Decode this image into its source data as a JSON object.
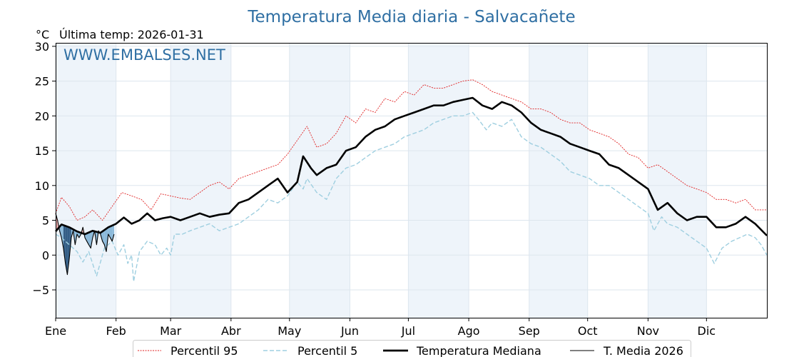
{
  "header": {
    "title": "Temperatura Media diaria - Salvacañete",
    "unit": "°C",
    "last_temp": "Última temp: 2026-01-31",
    "watermark": "WWW.EMBALSES.NET"
  },
  "legend": {
    "p95": "Percentil 95",
    "p5": "Percentil 5",
    "median": "Temperatura Mediana",
    "current": "T. Media 2026"
  },
  "colors": {
    "p95": "#e02020",
    "p5": "#9fcfe0",
    "median": "#000000",
    "current": "#000000",
    "above_fill": "#e8a0a0",
    "below_fill_light": "#7fb2d6",
    "below_fill_dark": "#1f4e79",
    "band": "#eef4fa",
    "grid": "#dde6ee",
    "title": "#2f6fa3"
  },
  "chart_data": {
    "type": "line",
    "xlim": [
      1,
      366
    ],
    "ylim": [
      -9,
      30.5
    ],
    "y_ticks": [
      -5,
      0,
      5,
      10,
      15,
      20,
      25,
      30
    ],
    "y_tick_labels": [
      "−5",
      "0",
      "5",
      "10",
      "15",
      "20",
      "25",
      "30"
    ],
    "month_labels": [
      "Ene",
      "Feb",
      "Mar",
      "Abr",
      "May",
      "Jun",
      "Jul",
      "Ago",
      "Sep",
      "Oct",
      "Nov",
      "Dic"
    ],
    "month_start_days": [
      1,
      32,
      60,
      91,
      121,
      152,
      182,
      213,
      244,
      274,
      305,
      335
    ],
    "series": [
      {
        "name": "Percentil 95",
        "style": "dotted-thin",
        "points": [
          [
            1,
            6
          ],
          [
            4,
            8.3
          ],
          [
            8,
            7
          ],
          [
            12,
            5
          ],
          [
            16,
            5.5
          ],
          [
            20,
            6.5
          ],
          [
            25,
            5
          ],
          [
            30,
            7
          ],
          [
            35,
            9
          ],
          [
            40,
            8.5
          ],
          [
            45,
            8
          ],
          [
            50,
            6.5
          ],
          [
            55,
            8.8
          ],
          [
            60,
            8.5
          ],
          [
            65,
            8.2
          ],
          [
            70,
            8
          ],
          [
            75,
            9
          ],
          [
            80,
            10
          ],
          [
            85,
            10.5
          ],
          [
            90,
            9.5
          ],
          [
            95,
            11
          ],
          [
            100,
            11.5
          ],
          [
            105,
            12
          ],
          [
            110,
            12.5
          ],
          [
            115,
            13
          ],
          [
            120,
            14.5
          ],
          [
            125,
            16.5
          ],
          [
            130,
            18.5
          ],
          [
            135,
            15.5
          ],
          [
            140,
            16
          ],
          [
            145,
            17.5
          ],
          [
            150,
            20
          ],
          [
            155,
            19
          ],
          [
            160,
            21
          ],
          [
            165,
            20.5
          ],
          [
            170,
            22.5
          ],
          [
            175,
            22
          ],
          [
            180,
            23.5
          ],
          [
            185,
            23
          ],
          [
            190,
            24.5
          ],
          [
            195,
            24
          ],
          [
            200,
            24
          ],
          [
            205,
            24.5
          ],
          [
            210,
            25
          ],
          [
            215,
            25.2
          ],
          [
            220,
            24.5
          ],
          [
            225,
            23.5
          ],
          [
            230,
            23
          ],
          [
            235,
            22.5
          ],
          [
            240,
            22
          ],
          [
            245,
            21
          ],
          [
            250,
            21
          ],
          [
            255,
            20.5
          ],
          [
            260,
            19.5
          ],
          [
            265,
            19
          ],
          [
            270,
            19
          ],
          [
            275,
            18
          ],
          [
            280,
            17.5
          ],
          [
            285,
            17
          ],
          [
            290,
            16
          ],
          [
            295,
            14.5
          ],
          [
            300,
            14
          ],
          [
            305,
            12.5
          ],
          [
            310,
            13
          ],
          [
            315,
            12
          ],
          [
            320,
            11
          ],
          [
            325,
            10
          ],
          [
            330,
            9.5
          ],
          [
            335,
            9
          ],
          [
            340,
            8
          ],
          [
            345,
            8
          ],
          [
            350,
            7.5
          ],
          [
            355,
            8
          ],
          [
            360,
            6.5
          ],
          [
            366,
            6.5
          ]
        ]
      },
      {
        "name": "Percentil 5",
        "style": "dashed",
        "points": [
          [
            1,
            3
          ],
          [
            4,
            2.5
          ],
          [
            8,
            1.5
          ],
          [
            12,
            0.5
          ],
          [
            15,
            -1
          ],
          [
            18,
            0.5
          ],
          [
            22,
            -3
          ],
          [
            26,
            1
          ],
          [
            30,
            2
          ],
          [
            33,
            0
          ],
          [
            36,
            1.5
          ],
          [
            38,
            -1.2
          ],
          [
            40,
            0
          ],
          [
            41,
            -3.8
          ],
          [
            44,
            0.5
          ],
          [
            48,
            2
          ],
          [
            52,
            1.5
          ],
          [
            55,
            0
          ],
          [
            58,
            1
          ],
          [
            60,
            0
          ],
          [
            62,
            3
          ],
          [
            66,
            3
          ],
          [
            70,
            3.5
          ],
          [
            75,
            4
          ],
          [
            80,
            4.5
          ],
          [
            85,
            3.5
          ],
          [
            90,
            4
          ],
          [
            95,
            4.5
          ],
          [
            100,
            5.5
          ],
          [
            105,
            6.5
          ],
          [
            110,
            8
          ],
          [
            115,
            7.5
          ],
          [
            120,
            8.5
          ],
          [
            125,
            10.5
          ],
          [
            128,
            9.5
          ],
          [
            130,
            11
          ],
          [
            135,
            9
          ],
          [
            140,
            8
          ],
          [
            145,
            11
          ],
          [
            150,
            12.5
          ],
          [
            155,
            13
          ],
          [
            160,
            14
          ],
          [
            165,
            15
          ],
          [
            170,
            15.5
          ],
          [
            175,
            16
          ],
          [
            180,
            17
          ],
          [
            185,
            17.5
          ],
          [
            190,
            18
          ],
          [
            195,
            19
          ],
          [
            200,
            19.5
          ],
          [
            205,
            20
          ],
          [
            210,
            20
          ],
          [
            215,
            20.5
          ],
          [
            218,
            19.5
          ],
          [
            222,
            18
          ],
          [
            225,
            19
          ],
          [
            230,
            18.5
          ],
          [
            235,
            19.5
          ],
          [
            240,
            17
          ],
          [
            245,
            16
          ],
          [
            250,
            15.5
          ],
          [
            255,
            14.5
          ],
          [
            260,
            13.5
          ],
          [
            265,
            12
          ],
          [
            270,
            11.5
          ],
          [
            275,
            11
          ],
          [
            280,
            10
          ],
          [
            285,
            10
          ],
          [
            290,
            9
          ],
          [
            295,
            8
          ],
          [
            300,
            7
          ],
          [
            305,
            6
          ],
          [
            308,
            3.5
          ],
          [
            312,
            5.5
          ],
          [
            315,
            4.5
          ],
          [
            320,
            4
          ],
          [
            325,
            3
          ],
          [
            330,
            2
          ],
          [
            335,
            1
          ],
          [
            339,
            -1.2
          ],
          [
            343,
            1
          ],
          [
            348,
            2
          ],
          [
            352,
            2.5
          ],
          [
            356,
            3
          ],
          [
            360,
            2.5
          ],
          [
            363,
            1.5
          ],
          [
            366,
            0
          ]
        ]
      },
      {
        "name": "Temperatura Mediana",
        "style": "solid-thick",
        "points": [
          [
            1,
            3.4
          ],
          [
            4,
            4.4
          ],
          [
            8,
            4
          ],
          [
            12,
            3.4
          ],
          [
            16,
            3
          ],
          [
            20,
            3.5
          ],
          [
            24,
            3.2
          ],
          [
            28,
            4
          ],
          [
            32,
            4.5
          ],
          [
            36,
            5.4
          ],
          [
            40,
            4.5
          ],
          [
            44,
            5
          ],
          [
            48,
            6
          ],
          [
            52,
            5
          ],
          [
            56,
            5.3
          ],
          [
            60,
            5.5
          ],
          [
            65,
            5
          ],
          [
            70,
            5.5
          ],
          [
            75,
            6
          ],
          [
            80,
            5.5
          ],
          [
            85,
            5.8
          ],
          [
            90,
            6
          ],
          [
            95,
            7.5
          ],
          [
            100,
            8
          ],
          [
            105,
            9
          ],
          [
            110,
            10
          ],
          [
            115,
            11
          ],
          [
            120,
            9
          ],
          [
            125,
            10.5
          ],
          [
            128,
            14.2
          ],
          [
            132,
            12.5
          ],
          [
            135,
            11.5
          ],
          [
            140,
            12.5
          ],
          [
            145,
            13
          ],
          [
            150,
            15
          ],
          [
            155,
            15.5
          ],
          [
            160,
            17
          ],
          [
            165,
            18
          ],
          [
            170,
            18.5
          ],
          [
            175,
            19.5
          ],
          [
            180,
            20
          ],
          [
            185,
            20.5
          ],
          [
            190,
            21
          ],
          [
            195,
            21.5
          ],
          [
            200,
            21.5
          ],
          [
            205,
            22
          ],
          [
            210,
            22.3
          ],
          [
            215,
            22.6
          ],
          [
            220,
            21.5
          ],
          [
            225,
            21
          ],
          [
            230,
            22
          ],
          [
            235,
            21.5
          ],
          [
            240,
            20.5
          ],
          [
            245,
            19
          ],
          [
            250,
            18
          ],
          [
            255,
            17.5
          ],
          [
            260,
            17
          ],
          [
            265,
            16
          ],
          [
            270,
            15.5
          ],
          [
            275,
            15
          ],
          [
            280,
            14.5
          ],
          [
            285,
            13
          ],
          [
            290,
            12.5
          ],
          [
            295,
            11.5
          ],
          [
            300,
            10.5
          ],
          [
            305,
            9.5
          ],
          [
            310,
            6.5
          ],
          [
            315,
            7.5
          ],
          [
            320,
            6
          ],
          [
            325,
            5
          ],
          [
            330,
            5.5
          ],
          [
            335,
            5.5
          ],
          [
            340,
            4
          ],
          [
            345,
            4
          ],
          [
            350,
            4.5
          ],
          [
            355,
            5.5
          ],
          [
            360,
            4.5
          ],
          [
            366,
            2.8
          ]
        ]
      },
      {
        "name": "T. Media 2026",
        "style": "solid-thin",
        "points": [
          [
            1,
            6
          ],
          [
            2,
            5
          ],
          [
            3,
            3.5
          ],
          [
            4,
            2.5
          ],
          [
            5,
            1
          ],
          [
            6,
            -1.2
          ],
          [
            7,
            -2.8
          ],
          [
            8,
            -0.5
          ],
          [
            9,
            2.5
          ],
          [
            10,
            3.5
          ],
          [
            11,
            1.5
          ],
          [
            12,
            3
          ],
          [
            13,
            2.5
          ],
          [
            14,
            3
          ],
          [
            15,
            4
          ],
          [
            16,
            2.5
          ],
          [
            17,
            2
          ],
          [
            18,
            1.5
          ],
          [
            19,
            1
          ],
          [
            20,
            2.5
          ],
          [
            21,
            3.5
          ],
          [
            22,
            1.5
          ],
          [
            23,
            3.5
          ],
          [
            24,
            3
          ],
          [
            25,
            2
          ],
          [
            26,
            1.5
          ],
          [
            27,
            0.5
          ],
          [
            28,
            3
          ],
          [
            29,
            2.5
          ],
          [
            30,
            2
          ],
          [
            31,
            3
          ]
        ]
      }
    ]
  }
}
